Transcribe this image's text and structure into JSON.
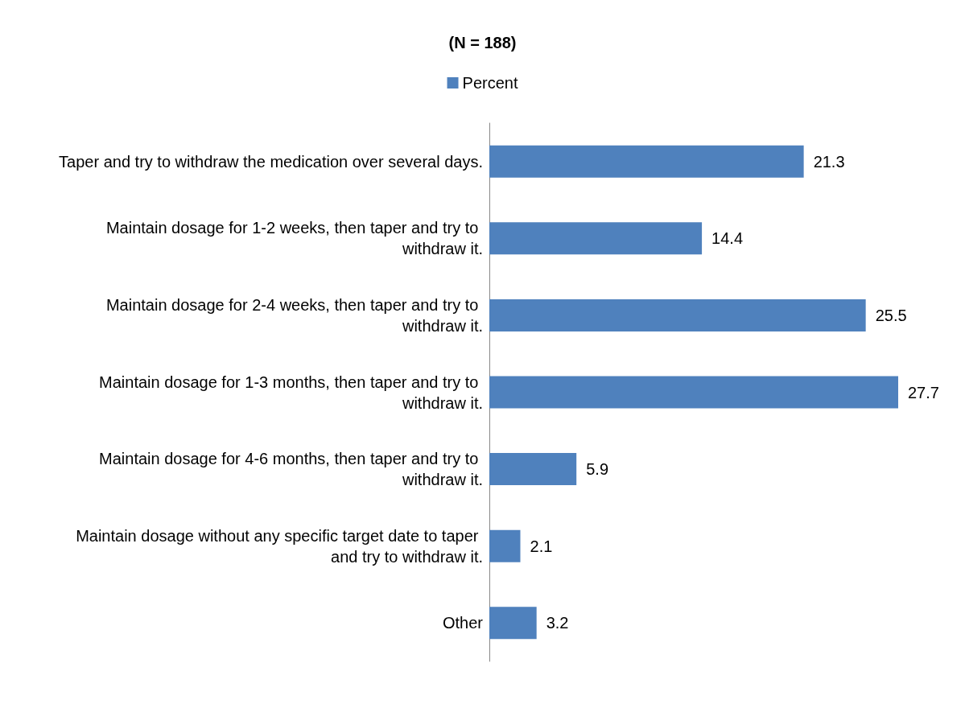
{
  "chart_data": {
    "type": "bar",
    "orientation": "horizontal",
    "title": "(N = 188)",
    "categories": [
      "Taper and try to withdraw the medication over several days.",
      "Maintain dosage for 1-2 weeks, then taper and try to withdraw it.",
      "Maintain dosage for 2-4 weeks, then taper and try to withdraw it.",
      "Maintain dosage for 1-3 months, then taper and try to withdraw it.",
      "Maintain dosage for 4-6 months, then taper and try to withdraw it.",
      "Maintain dosage without any specific target date to taper and try to withdraw it.",
      "Other"
    ],
    "series": [
      {
        "name": "Percent",
        "color": "#4f81bd",
        "values": [
          21.3,
          14.4,
          25.5,
          27.7,
          5.9,
          2.1,
          3.2
        ]
      }
    ],
    "data_labels": true,
    "legend": "top"
  }
}
